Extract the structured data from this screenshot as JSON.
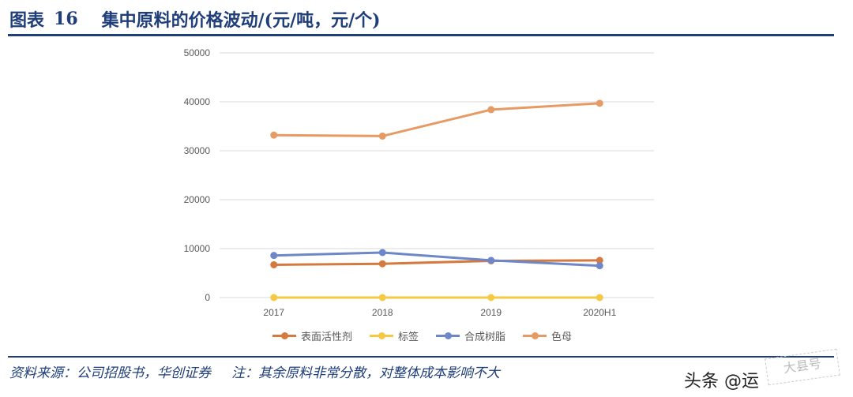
{
  "header": {
    "figure_label": "图表",
    "figure_number": "16",
    "title": "集中原料的价格波动/(元/吨，元/个)"
  },
  "footer": {
    "source": "资料来源：公司招股书，华创证券",
    "note": "注：其余原料非常分散，对整体成本影响不大"
  },
  "watermark": {
    "text": "头条 @运"
  },
  "stamp": {
    "text": "大县号"
  },
  "chart_data": {
    "type": "line",
    "title": "",
    "xlabel": "",
    "ylabel": "",
    "categories": [
      "2017",
      "2018",
      "2019",
      "2020H1"
    ],
    "ylim": [
      0,
      50000
    ],
    "yticks": [
      "50000",
      "40000",
      "30000",
      "20000",
      "10000",
      "0"
    ],
    "grid": true,
    "legend_position": "bottom",
    "series": [
      {
        "name": "表面活性剂",
        "color": "#d57a3e",
        "values": [
          6700,
          6900,
          7500,
          7600
        ]
      },
      {
        "name": "标签",
        "color": "#f5c943",
        "values": [
          0,
          0,
          0,
          0
        ]
      },
      {
        "name": "合成树脂",
        "color": "#6d87c8",
        "values": [
          8600,
          9200,
          7600,
          6500
        ]
      },
      {
        "name": "色母",
        "color": "#e69a64",
        "values": [
          33200,
          33000,
          38400,
          39700
        ]
      }
    ]
  }
}
